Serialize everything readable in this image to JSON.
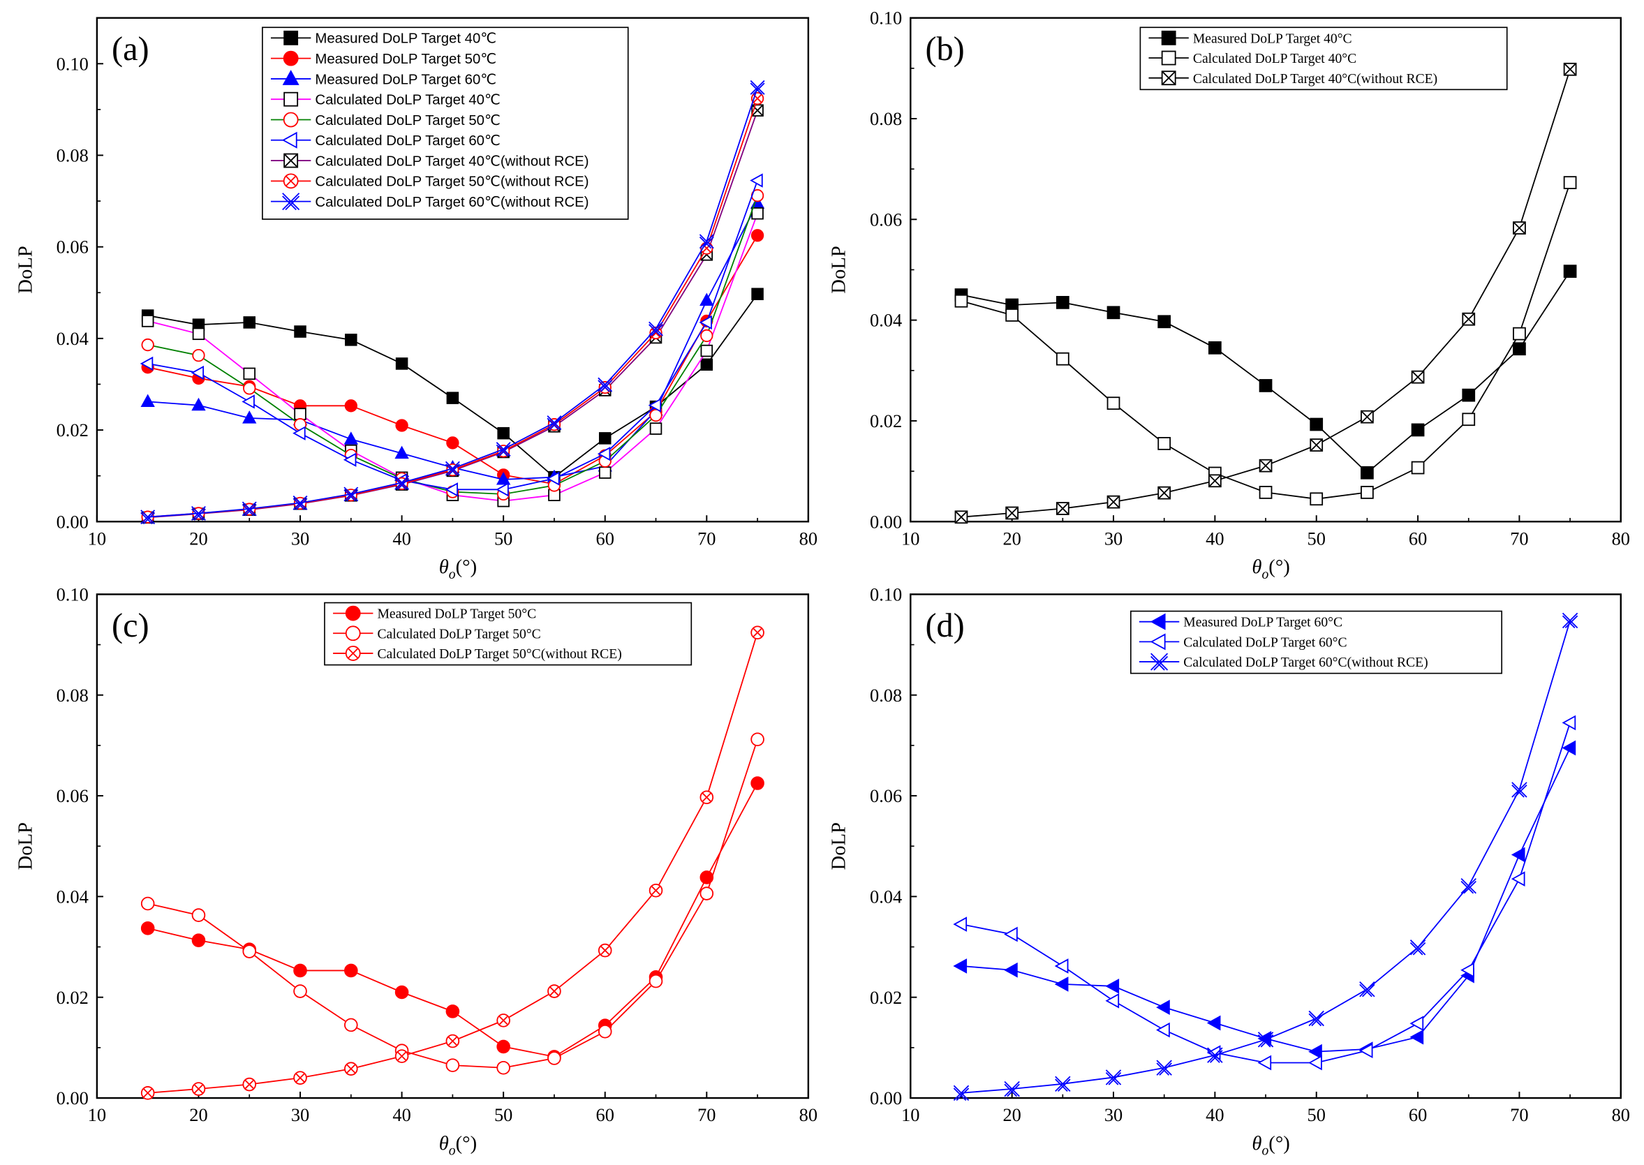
{
  "chart_data": [
    {
      "id": "a",
      "panel_label": "(a)",
      "type": "line",
      "xlabel": "θo(°)",
      "ylabel": "DoLP",
      "xlim": [
        10,
        80
      ],
      "ylim": [
        0.0,
        0.11
      ],
      "xticks": [
        "10",
        "20",
        "30",
        "40",
        "50",
        "60",
        "70",
        "80"
      ],
      "yticks": [
        "0.00",
        "0.02",
        "0.04",
        "0.06",
        "0.08",
        "0.10"
      ],
      "x": [
        15,
        20,
        25,
        30,
        35,
        40,
        45,
        50,
        55,
        60,
        65,
        70,
        75
      ],
      "legend_position": "top-center",
      "series": [
        {
          "name": "Measured DoLP Target 40℃",
          "color": "#000000",
          "line": "#000000",
          "marker": "square-filled",
          "values": [
            0.045,
            0.043,
            0.0435,
            0.0415,
            0.0397,
            0.0345,
            0.027,
            0.0193,
            0.0097,
            0.0182,
            0.0251,
            0.0343,
            0.0497
          ]
        },
        {
          "name": "Measured DoLP Target 50℃",
          "color": "#ff0000",
          "line": "#ff0000",
          "marker": "circle-filled",
          "values": [
            0.0337,
            0.0313,
            0.0295,
            0.0253,
            0.0253,
            0.021,
            0.0172,
            0.0102,
            0.0082,
            0.0144,
            0.024,
            0.0438,
            0.0625
          ]
        },
        {
          "name": "Measured DoLP Target 60℃",
          "color": "#0000ff",
          "line": "#0000ff",
          "marker": "triangle-up-filled",
          "values": [
            0.0262,
            0.0254,
            0.0226,
            0.0222,
            0.018,
            0.0149,
            0.0118,
            0.0092,
            0.0097,
            0.0121,
            0.0243,
            0.0483,
            0.0695
          ]
        },
        {
          "name": "Calculated DoLP Target 40℃",
          "color": "#000000",
          "line": "#ff00ff",
          "marker": "square-open",
          "values": [
            0.0438,
            0.041,
            0.0323,
            0.0235,
            0.0155,
            0.0096,
            0.0058,
            0.0045,
            0.0058,
            0.0107,
            0.0203,
            0.0373,
            0.0673
          ]
        },
        {
          "name": "Calculated DoLP Target 50℃",
          "color": "#ff0000",
          "line": "#008000",
          "marker": "circle-open",
          "values": [
            0.0386,
            0.0363,
            0.0291,
            0.0212,
            0.0145,
            0.0094,
            0.0065,
            0.006,
            0.0079,
            0.0132,
            0.0232,
            0.0406,
            0.0712
          ]
        },
        {
          "name": "Calculated DoLP Target 60℃",
          "color": "#0000ff",
          "line": "#0000ff",
          "marker": "triangle-left-open",
          "values": [
            0.0345,
            0.0325,
            0.0262,
            0.0193,
            0.0135,
            0.009,
            0.007,
            0.007,
            0.0094,
            0.0148,
            0.0254,
            0.0435,
            0.0745
          ]
        },
        {
          "name": "Calculated DoLP Target 40℃(without RCE)",
          "color": "#000000",
          "line": "#800080",
          "marker": "square-x",
          "values": [
            0.0009,
            0.0017,
            0.0026,
            0.0039,
            0.0057,
            0.0081,
            0.0111,
            0.0152,
            0.0208,
            0.0287,
            0.0402,
            0.0583,
            0.0898
          ]
        },
        {
          "name": "Calculated DoLP Target 50℃(without RCE)",
          "color": "#ff0000",
          "line": "#ff0000",
          "marker": "circle-x",
          "values": [
            0.001,
            0.0018,
            0.0027,
            0.004,
            0.0058,
            0.0083,
            0.0113,
            0.0154,
            0.0212,
            0.0293,
            0.0412,
            0.0597,
            0.0924
          ]
        },
        {
          "name": "Calculated DoLP Target 60℃(without RCE)",
          "color": "#0000ff",
          "line": "#0000ff",
          "marker": "double-x",
          "values": [
            0.001,
            0.0018,
            0.0028,
            0.0041,
            0.006,
            0.0085,
            0.0116,
            0.0158,
            0.0216,
            0.0299,
            0.0421,
            0.0612,
            0.0948
          ]
        }
      ]
    },
    {
      "id": "b",
      "panel_label": "(b)",
      "type": "line",
      "xlabel": "θo(°)",
      "ylabel": "DoLP",
      "xlim": [
        10,
        80
      ],
      "ylim": [
        0.0,
        0.1
      ],
      "xticks": [
        "10",
        "20",
        "30",
        "40",
        "50",
        "60",
        "70",
        "80"
      ],
      "yticks": [
        "0.00",
        "0.02",
        "0.04",
        "0.06",
        "0.08",
        "0.10"
      ],
      "x": [
        15,
        20,
        25,
        30,
        35,
        40,
        45,
        50,
        55,
        60,
        65,
        70,
        75
      ],
      "legend_position": "top-center",
      "series": [
        {
          "name": "Measured DoLP Target 40°C",
          "color": "#000000",
          "line": "#000000",
          "marker": "square-filled",
          "values": [
            0.045,
            0.043,
            0.0435,
            0.0415,
            0.0397,
            0.0345,
            0.027,
            0.0193,
            0.0097,
            0.0182,
            0.0251,
            0.0343,
            0.0497
          ]
        },
        {
          "name": "Calculated DoLP Target 40°C",
          "color": "#000000",
          "line": "#000000",
          "marker": "square-open",
          "values": [
            0.0438,
            0.041,
            0.0323,
            0.0235,
            0.0155,
            0.0096,
            0.0058,
            0.0045,
            0.0058,
            0.0107,
            0.0203,
            0.0373,
            0.0673
          ]
        },
        {
          "name": "Calculated DoLP Target 40°C(without RCE)",
          "color": "#000000",
          "line": "#000000",
          "marker": "square-x",
          "values": [
            0.0009,
            0.0017,
            0.0026,
            0.0039,
            0.0057,
            0.0081,
            0.0111,
            0.0152,
            0.0208,
            0.0287,
            0.0402,
            0.0583,
            0.0898
          ]
        }
      ]
    },
    {
      "id": "c",
      "panel_label": "(c)",
      "type": "line",
      "xlabel": "θo(°)",
      "ylabel": "DoLP",
      "xlim": [
        10,
        80
      ],
      "ylim": [
        0.0,
        0.1
      ],
      "xticks": [
        "10",
        "20",
        "30",
        "40",
        "50",
        "60",
        "70",
        "80"
      ],
      "yticks": [
        "0.00",
        "0.02",
        "0.04",
        "0.06",
        "0.08",
        "0.10"
      ],
      "x": [
        15,
        20,
        25,
        30,
        35,
        40,
        45,
        50,
        55,
        60,
        65,
        70,
        75
      ],
      "legend_position": "top-center",
      "series": [
        {
          "name": "Measured DoLP Target 50°C",
          "color": "#ff0000",
          "line": "#ff0000",
          "marker": "circle-filled",
          "values": [
            0.0337,
            0.0313,
            0.0295,
            0.0253,
            0.0253,
            0.021,
            0.0172,
            0.0102,
            0.0082,
            0.0144,
            0.024,
            0.0438,
            0.0625
          ]
        },
        {
          "name": "Calculated DoLP Target 50°C",
          "color": "#ff0000",
          "line": "#ff0000",
          "marker": "circle-open",
          "values": [
            0.0386,
            0.0363,
            0.0291,
            0.0212,
            0.0145,
            0.0094,
            0.0065,
            0.006,
            0.0079,
            0.0132,
            0.0232,
            0.0406,
            0.0712
          ]
        },
        {
          "name": "Calculated DoLP Target 50°C(without RCE)",
          "color": "#ff0000",
          "line": "#ff0000",
          "marker": "circle-x",
          "values": [
            0.001,
            0.0018,
            0.0027,
            0.004,
            0.0058,
            0.0083,
            0.0113,
            0.0154,
            0.0212,
            0.0293,
            0.0412,
            0.0597,
            0.0924
          ]
        }
      ]
    },
    {
      "id": "d",
      "panel_label": "(d)",
      "type": "line",
      "xlabel": "θo(°)",
      "ylabel": "DoLP",
      "xlim": [
        10,
        80
      ],
      "ylim": [
        0.0,
        0.1
      ],
      "xticks": [
        "10",
        "20",
        "30",
        "40",
        "50",
        "60",
        "70",
        "80"
      ],
      "yticks": [
        "0.00",
        "0.02",
        "0.04",
        "0.06",
        "0.08",
        "0.10"
      ],
      "x": [
        15,
        20,
        25,
        30,
        35,
        40,
        45,
        50,
        55,
        60,
        65,
        70,
        75
      ],
      "legend_position": "top-center",
      "series": [
        {
          "name": "Measured DoLP Target 60°C",
          "color": "#0000ff",
          "line": "#0000ff",
          "marker": "triangle-left-filled",
          "values": [
            0.0262,
            0.0254,
            0.0226,
            0.0222,
            0.018,
            0.0149,
            0.0118,
            0.0092,
            0.0097,
            0.0121,
            0.0243,
            0.0483,
            0.0695
          ]
        },
        {
          "name": "Calculated DoLP Target 60°C",
          "color": "#0000ff",
          "line": "#0000ff",
          "marker": "triangle-left-open",
          "values": [
            0.0345,
            0.0325,
            0.0262,
            0.0193,
            0.0135,
            0.009,
            0.007,
            0.007,
            0.0094,
            0.0148,
            0.0254,
            0.0435,
            0.0745
          ]
        },
        {
          "name": "Calculated DoLP Target 60°C(without RCE)",
          "color": "#0000ff",
          "line": "#0000ff",
          "marker": "double-x",
          "values": [
            0.001,
            0.0018,
            0.0028,
            0.0041,
            0.006,
            0.0085,
            0.0116,
            0.0158,
            0.0216,
            0.0299,
            0.0421,
            0.0612,
            0.0948
          ]
        }
      ]
    }
  ]
}
